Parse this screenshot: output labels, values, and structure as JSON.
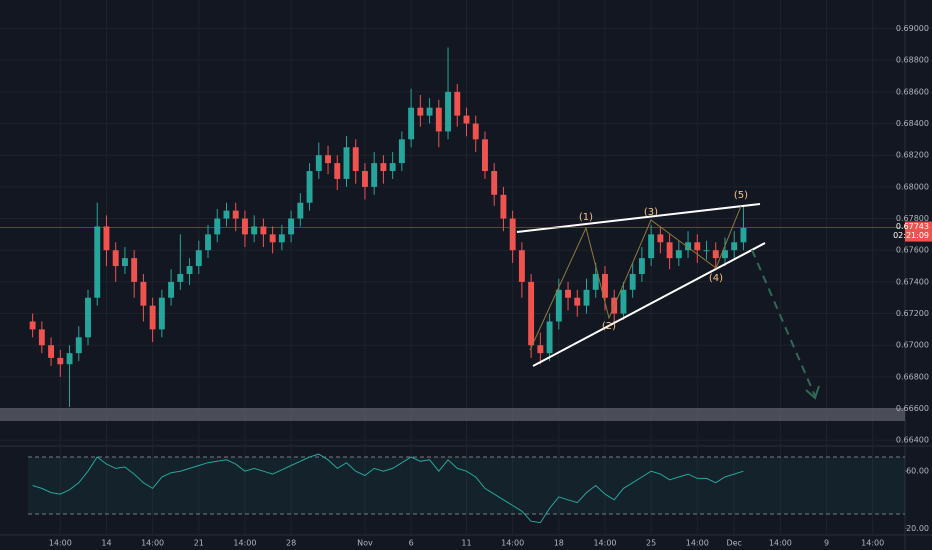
{
  "chart_data": {
    "type": "candlestick",
    "categories": [
      null,
      null,
      null,
      "14:00",
      null,
      null,
      null,
      null,
      "14",
      null,
      null,
      null,
      null,
      "14:00",
      null,
      null,
      null,
      null,
      "21",
      null,
      null,
      null,
      null,
      "14:00",
      null,
      null,
      null,
      null,
      "28",
      null,
      null,
      null,
      null,
      null,
      null,
      null,
      "Nov",
      null,
      null,
      null,
      null,
      "6",
      null,
      null,
      null,
      null,
      null,
      "11",
      null,
      null,
      null,
      null,
      "14:00",
      null,
      null,
      null,
      null,
      "18",
      null,
      null,
      null,
      null,
      "14:00",
      null,
      null,
      null,
      null,
      "25",
      null,
      null,
      null,
      null,
      "14:00",
      null,
      null,
      null,
      "Dec",
      null,
      null,
      null,
      null,
      "14:00",
      null,
      null,
      null,
      null,
      "9",
      null,
      null,
      null,
      null,
      "14:00",
      null,
      null,
      null
    ],
    "open": [
      0.6715,
      0.671,
      0.67,
      0.6692,
      0.6688,
      0.6695,
      0.6705,
      0.673,
      0.6775,
      0.676,
      0.675,
      0.6755,
      0.674,
      0.6725,
      0.671,
      0.673,
      0.674,
      0.6745,
      0.675,
      0.676,
      0.677,
      0.678,
      0.6785,
      0.678,
      0.677,
      0.6775,
      0.677,
      0.6765,
      0.677,
      0.678,
      0.679,
      0.681,
      0.682,
      0.6815,
      0.6805,
      0.6825,
      0.681,
      0.68,
      0.6815,
      0.681,
      0.6815,
      0.683,
      0.685,
      0.6845,
      0.685,
      0.6835,
      0.686,
      0.6845,
      0.684,
      0.683,
      0.681,
      0.6795,
      0.678,
      0.676,
      0.674,
      0.67,
      0.6695,
      0.6715,
      0.6735,
      0.673,
      0.6725,
      0.6735,
      0.6745,
      0.673,
      0.672,
      0.6735,
      0.6745,
      0.6755,
      0.677,
      0.6765,
      0.6755,
      0.676,
      0.6765,
      0.676,
      0.676,
      0.6755,
      0.676,
      0.6765,
      null,
      null,
      null,
      null,
      null,
      null,
      null,
      null,
      null,
      null,
      null,
      null,
      null,
      null,
      null,
      null,
      null
    ],
    "high": [
      0.672,
      0.6715,
      0.6705,
      0.6697,
      0.67,
      0.6712,
      0.6735,
      0.679,
      0.6782,
      0.6765,
      0.6762,
      0.676,
      0.6745,
      0.673,
      0.6735,
      0.6748,
      0.677,
      0.6755,
      0.6766,
      0.6776,
      0.6786,
      0.679,
      0.679,
      0.6785,
      0.6782,
      0.678,
      0.6775,
      0.6776,
      0.6785,
      0.6796,
      0.6815,
      0.6828,
      0.6826,
      0.682,
      0.6832,
      0.683,
      0.6815,
      0.6822,
      0.682,
      0.6822,
      0.6835,
      0.6862,
      0.6858,
      0.6856,
      0.6855,
      0.6888,
      0.6865,
      0.685,
      0.6845,
      0.6835,
      0.6815,
      0.68,
      0.6785,
      0.6765,
      0.6745,
      0.6708,
      0.672,
      0.6742,
      0.674,
      0.6735,
      0.6742,
      0.6752,
      0.675,
      0.6735,
      0.674,
      0.6752,
      0.6762,
      0.6776,
      0.6775,
      0.677,
      0.6766,
      0.6772,
      0.677,
      0.6766,
      0.6765,
      0.6768,
      0.6772,
      0.6788,
      null,
      null,
      null,
      null,
      null,
      null,
      null,
      null,
      null,
      null,
      null,
      null,
      null,
      null,
      null,
      null,
      null
    ],
    "low": [
      0.6705,
      0.6695,
      0.6687,
      0.668,
      0.6661,
      0.669,
      0.67,
      0.6725,
      0.675,
      0.674,
      0.6745,
      0.673,
      0.6715,
      0.6702,
      0.6705,
      0.6725,
      0.6735,
      0.6738,
      0.6745,
      0.6755,
      0.6765,
      0.6775,
      0.6772,
      0.6762,
      0.6765,
      0.6762,
      0.6758,
      0.676,
      0.6765,
      0.6775,
      0.6785,
      0.6805,
      0.6808,
      0.6798,
      0.68,
      0.6802,
      0.6792,
      0.6795,
      0.6802,
      0.6805,
      0.681,
      0.6825,
      0.6838,
      0.684,
      0.6825,
      0.683,
      0.6838,
      0.6832,
      0.6822,
      0.6805,
      0.6788,
      0.6772,
      0.6752,
      0.673,
      0.6692,
      0.6688,
      0.669,
      0.671,
      0.6722,
      0.6718,
      0.672,
      0.673,
      0.6722,
      0.6715,
      0.6716,
      0.673,
      0.674,
      0.675,
      0.6758,
      0.6748,
      0.675,
      0.6755,
      0.6752,
      0.6754,
      0.6748,
      0.675,
      0.6755,
      0.676,
      null,
      null,
      null,
      null,
      null,
      null,
      null,
      null,
      null,
      null,
      null,
      null,
      null,
      null,
      null,
      null,
      null
    ],
    "close": [
      0.671,
      0.67,
      0.6692,
      0.6688,
      0.6695,
      0.6705,
      0.673,
      0.6775,
      0.676,
      0.675,
      0.6755,
      0.674,
      0.6725,
      0.671,
      0.673,
      0.674,
      0.6745,
      0.675,
      0.676,
      0.677,
      0.678,
      0.6785,
      0.678,
      0.677,
      0.6775,
      0.677,
      0.6765,
      0.677,
      0.678,
      0.679,
      0.681,
      0.682,
      0.6815,
      0.6805,
      0.6825,
      0.681,
      0.68,
      0.6815,
      0.681,
      0.6815,
      0.683,
      0.685,
      0.6845,
      0.685,
      0.6835,
      0.686,
      0.6845,
      0.684,
      0.683,
      0.681,
      0.6795,
      0.678,
      0.676,
      0.674,
      0.67,
      0.6695,
      0.6715,
      0.6735,
      0.673,
      0.6725,
      0.6735,
      0.6745,
      0.673,
      0.672,
      0.6735,
      0.6745,
      0.6755,
      0.677,
      0.6765,
      0.6755,
      0.676,
      0.6765,
      0.676,
      0.676,
      0.6755,
      0.676,
      0.6765,
      0.6774,
      null,
      null,
      null,
      null,
      null,
      null,
      null,
      null,
      null,
      null,
      null,
      null,
      null,
      null,
      null,
      null,
      null
    ],
    "up_color": "#26a69a",
    "down_color": "#ef5350",
    "ylim": [
      0.6637,
      0.6918
    ],
    "yticks": [
      {
        "value": 0.664,
        "label": "0.66400"
      },
      {
        "value": 0.666,
        "label": "0.66600"
      },
      {
        "value": 0.668,
        "label": "0.66800"
      },
      {
        "value": 0.67,
        "label": "0.67000"
      },
      {
        "value": 0.672,
        "label": "0.67200"
      },
      {
        "value": 0.674,
        "label": "0.67400"
      },
      {
        "value": 0.676,
        "label": "0.67600"
      },
      {
        "value": 0.678,
        "label": "0.67800"
      },
      {
        "value": 0.68,
        "label": "0.68000"
      },
      {
        "value": 0.682,
        "label": "0.68200"
      },
      {
        "value": 0.684,
        "label": "0.68400"
      },
      {
        "value": 0.686,
        "label": "0.68600"
      },
      {
        "value": 0.688,
        "label": "0.68800"
      },
      {
        "value": 0.69,
        "label": "0.69000"
      }
    ],
    "grid": true,
    "last_price": {
      "value": 0.67743,
      "label": "0.67743"
    },
    "countdown": "02:21:09",
    "waves": [
      "(1)",
      "(2)",
      "(3)",
      "(4)",
      "(5)"
    ],
    "rsi": {
      "color": "#26a69a",
      "values": [
        50,
        48,
        45,
        44,
        47,
        52,
        60,
        70,
        65,
        62,
        63,
        58,
        52,
        48,
        56,
        59,
        60,
        62,
        64,
        66,
        67,
        68,
        65,
        60,
        62,
        60,
        58,
        61,
        64,
        67,
        70,
        72,
        68,
        62,
        66,
        60,
        57,
        62,
        60,
        62,
        66,
        70,
        67,
        68,
        60,
        68,
        62,
        60,
        56,
        48,
        44,
        40,
        36,
        32,
        25,
        24,
        34,
        42,
        40,
        38,
        45,
        50,
        44,
        40,
        48,
        52,
        56,
        60,
        58,
        54,
        56,
        58,
        55,
        55,
        52,
        56,
        58,
        60,
        null,
        null,
        null,
        null,
        null,
        null,
        null,
        null,
        null,
        null,
        null,
        null,
        null,
        null,
        null,
        null,
        null
      ],
      "ylim": [
        15.3,
        77
      ],
      "yticks": [
        {
          "value": 60,
          "label": "60.00"
        },
        {
          "value": 20,
          "label": "20.00"
        }
      ],
      "bands": [
        70,
        30
      ]
    }
  }
}
